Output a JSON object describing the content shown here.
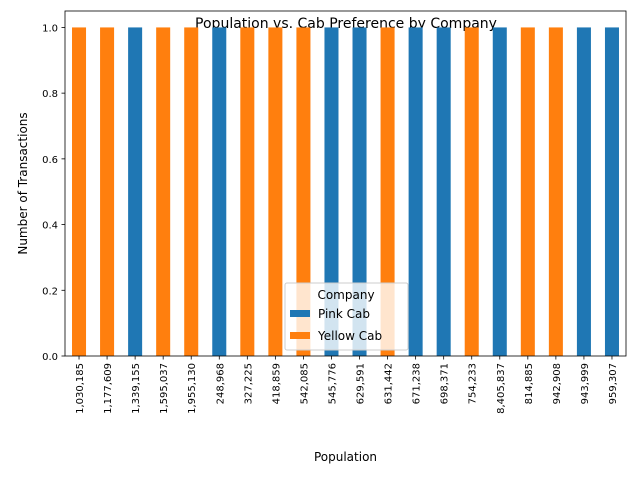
{
  "chart_data": {
    "type": "bar",
    "stacked": true,
    "title": "Population vs. Cab Preference by Company",
    "xlabel": "Population",
    "ylabel": "Number of Transactions",
    "ylim": [
      0,
      1.05
    ],
    "yticks": [
      "0.0",
      "0.2",
      "0.4",
      "0.6",
      "0.8",
      "1.0"
    ],
    "grid": false,
    "legend": {
      "title": "Company",
      "position": "lower-center"
    },
    "categories": [
      "1,030,185",
      "1,177,609",
      "1,339,155",
      "1,595,037",
      "1,955,130",
      "248,968",
      "327,225",
      "418,859",
      "542,085",
      "545,776",
      "629,591",
      "631,442",
      "671,238",
      "698,371",
      "754,233",
      "8,405,837",
      "814,885",
      "942,908",
      "943,999",
      "959,307"
    ],
    "series": [
      {
        "name": "Pink Cab",
        "color": "#1f77b4",
        "values": [
          0,
          0,
          1,
          0,
          0,
          1,
          0,
          0,
          0,
          1,
          1,
          0,
          1,
          1,
          0,
          1,
          0,
          0,
          1,
          1
        ]
      },
      {
        "name": "Yellow Cab",
        "color": "#ff7f0e",
        "values": [
          1,
          1,
          0,
          1,
          1,
          0,
          1,
          1,
          1,
          0,
          0,
          1,
          0,
          0,
          1,
          0,
          1,
          1,
          0,
          0
        ]
      }
    ]
  }
}
